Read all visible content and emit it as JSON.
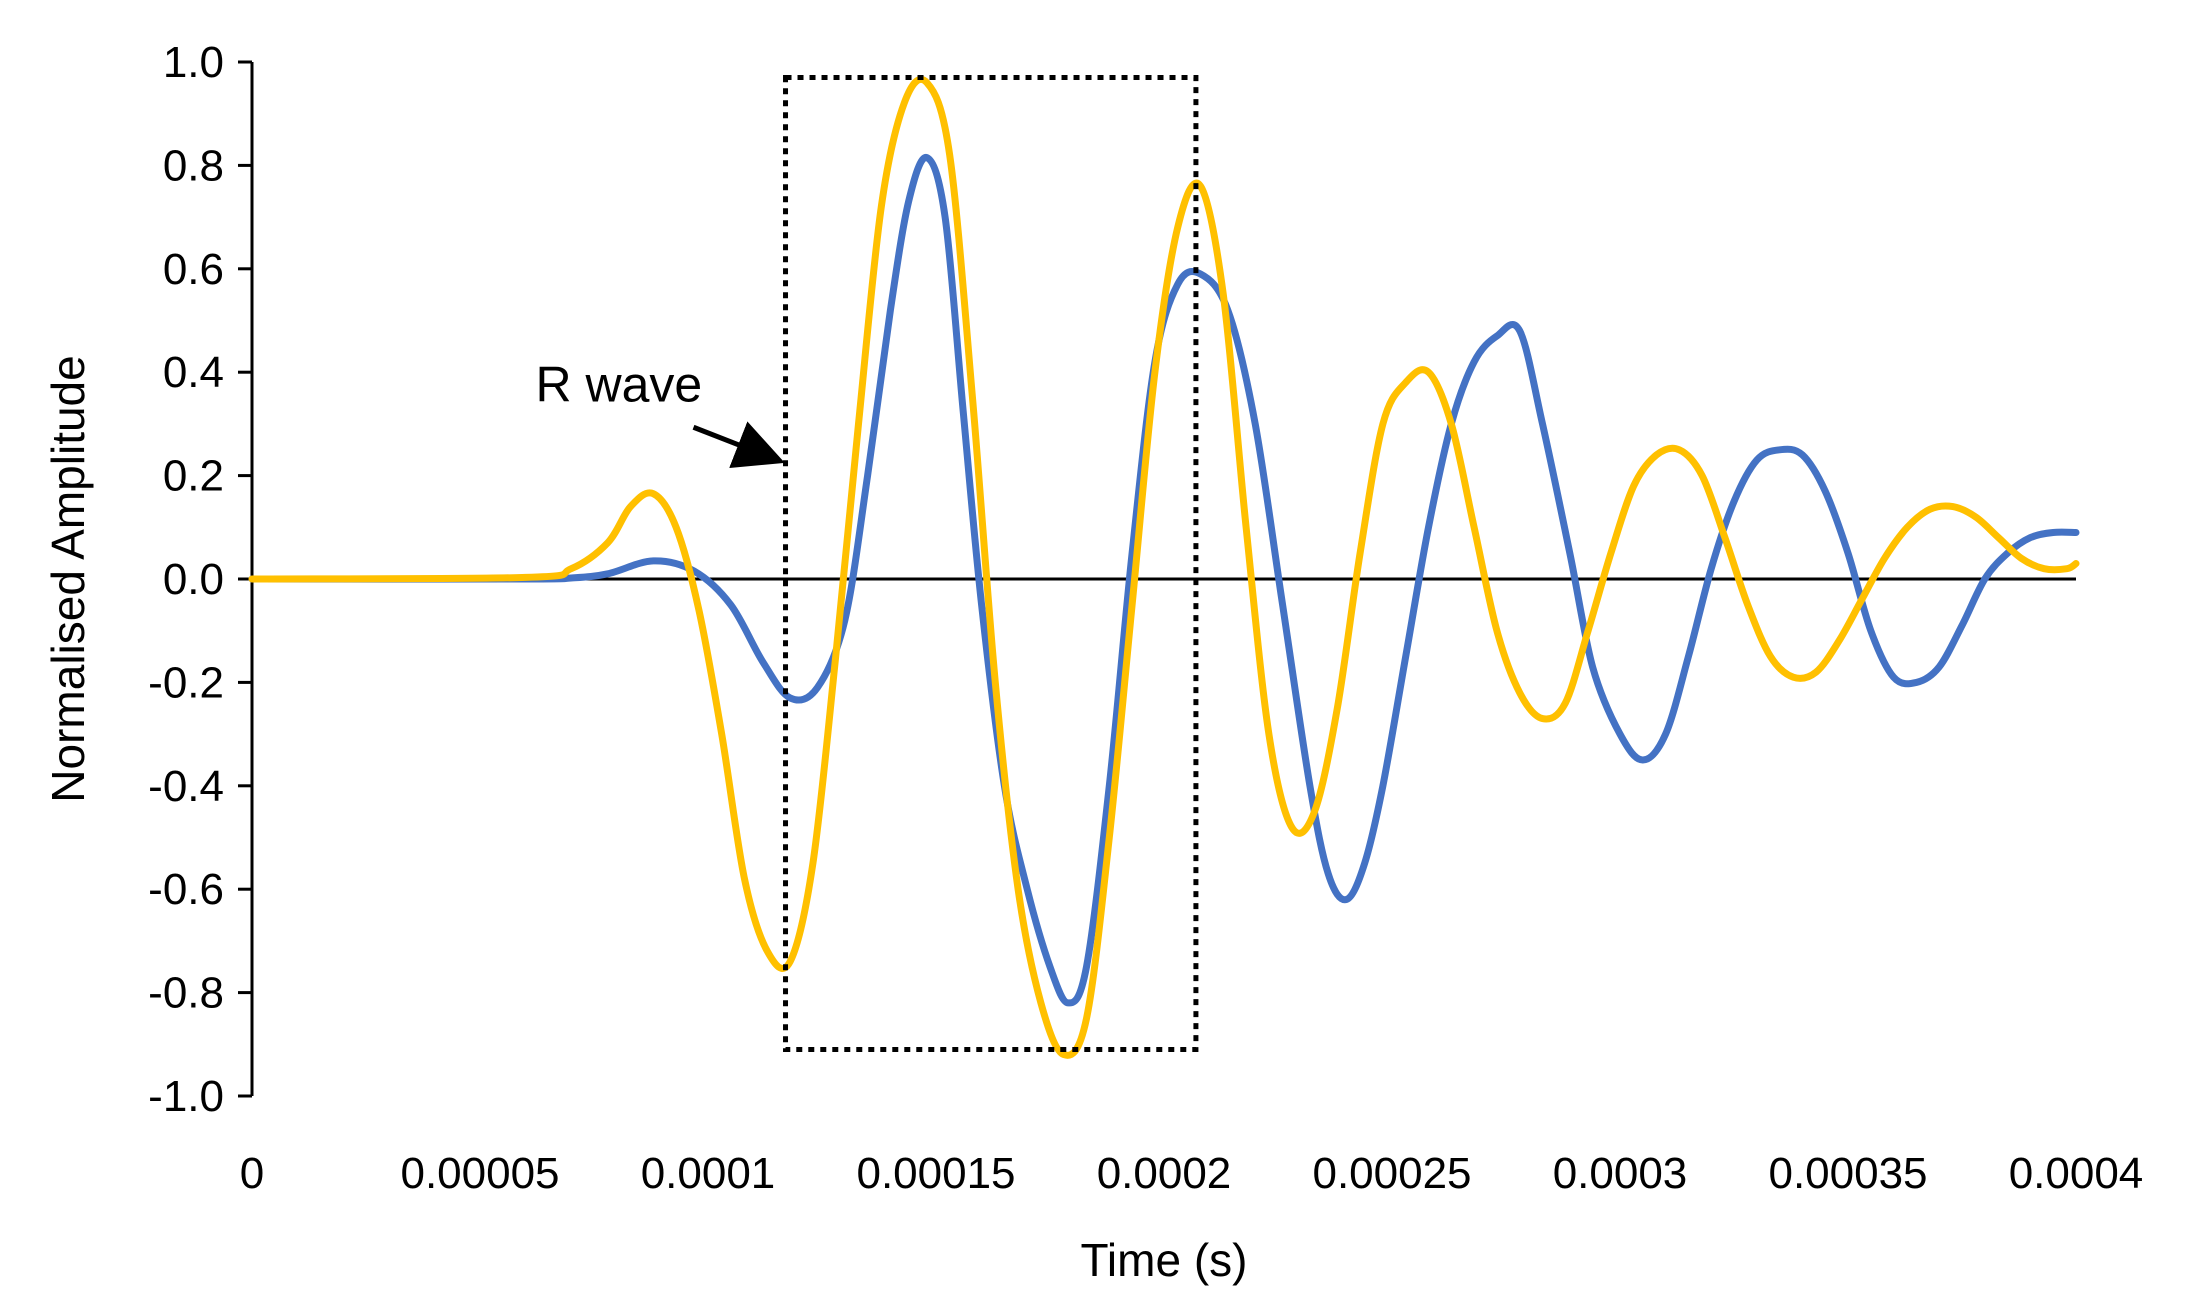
{
  "chart_data": {
    "type": "line",
    "title": "",
    "xlabel": "Time (s)",
    "ylabel": "Normalised Amplitude",
    "xlim": [
      0,
      0.0004
    ],
    "ylim": [
      -1.0,
      1.0
    ],
    "x_ticks": [
      0,
      5e-05,
      0.0001,
      0.00015,
      0.0002,
      0.00025,
      0.0003,
      0.00035,
      0.0004
    ],
    "x_tick_labels": [
      "0",
      "0.00005",
      "0.0001",
      "0.00015",
      "0.0002",
      "0.00025",
      "0.0003",
      "0.00035",
      "0.0004"
    ],
    "y_ticks": [
      1.0,
      0.8,
      0.6,
      0.4,
      0.2,
      0.0,
      -0.2,
      -0.4,
      -0.6,
      -0.8,
      -1.0
    ],
    "y_tick_labels": [
      "1.0",
      "0.8",
      "0.6",
      "0.4",
      "0.2",
      "0.0",
      "-0.2",
      "-0.4",
      "-0.6",
      "-0.8",
      "-1.0"
    ],
    "grid": false,
    "legend": "none",
    "series": [
      {
        "color": "#4472C4",
        "x": [
          0,
          6e-05,
          7e-05,
          7.8e-05,
          8.8e-05,
          9.7e-05,
          0.000105,
          0.000112,
          0.000118,
          0.000124,
          0.00013,
          0.000135,
          0.00014,
          0.000144,
          0.000148,
          0.000152,
          0.000156,
          0.00016,
          0.000165,
          0.00017,
          0.000175,
          0.000179,
          0.000183,
          0.000188,
          0.000193,
          0.000198,
          0.000203,
          0.000208,
          0.000214,
          0.00022,
          0.000226,
          0.000232,
          0.000236,
          0.00024,
          0.000244,
          0.000248,
          0.000253,
          0.000258,
          0.000263,
          0.000268,
          0.000273,
          0.000278,
          0.000283,
          0.000289,
          0.000294,
          0.0003,
          0.000305,
          0.00031,
          0.000315,
          0.00032,
          0.000325,
          0.00033,
          0.000335,
          0.00034,
          0.000345,
          0.00035,
          0.000355,
          0.00036,
          0.000365,
          0.00037,
          0.000375,
          0.00038,
          0.000385,
          0.00039,
          0.000395,
          0.0004
        ],
        "values": [
          0,
          0,
          0.002,
          0.01,
          0.035,
          0.015,
          -0.05,
          -0.16,
          -0.23,
          -0.21,
          -0.08,
          0.2,
          0.52,
          0.73,
          0.815,
          0.7,
          0.32,
          -0.05,
          -0.4,
          -0.6,
          -0.75,
          -0.82,
          -0.75,
          -0.4,
          0.05,
          0.42,
          0.57,
          0.59,
          0.52,
          0.3,
          -0.05,
          -0.4,
          -0.57,
          -0.62,
          -0.55,
          -0.4,
          -0.15,
          0.1,
          0.3,
          0.42,
          0.47,
          0.48,
          0.3,
          0.05,
          -0.17,
          -0.3,
          -0.35,
          -0.3,
          -0.15,
          0.02,
          0.15,
          0.23,
          0.25,
          0.24,
          0.17,
          0.05,
          -0.1,
          -0.19,
          -0.2,
          -0.17,
          -0.09,
          0.0,
          0.05,
          0.08,
          0.09,
          0.09
        ]
      },
      {
        "color": "#FFC000",
        "x": [
          0,
          6e-05,
          7e-05,
          7.8e-05,
          8.3e-05,
          8.8e-05,
          9.3e-05,
          9.8e-05,
          0.000103,
          0.000108,
          0.000113,
          0.000118,
          0.000123,
          0.000128,
          0.000133,
          0.000138,
          0.000143,
          0.000148,
          0.000153,
          0.000158,
          0.000163,
          0.000168,
          0.000173,
          0.000178,
          0.000183,
          0.000188,
          0.000193,
          0.000198,
          0.000203,
          0.000208,
          0.000213,
          0.000218,
          0.000223,
          0.000228,
          0.000233,
          0.000238,
          0.000243,
          0.000248,
          0.000253,
          0.000258,
          0.000263,
          0.000268,
          0.000273,
          0.000278,
          0.000283,
          0.000288,
          0.000293,
          0.000298,
          0.000303,
          0.000308,
          0.000313,
          0.000318,
          0.000323,
          0.000328,
          0.000333,
          0.000338,
          0.000343,
          0.000348,
          0.000353,
          0.000358,
          0.000363,
          0.000368,
          0.000373,
          0.000378,
          0.000383,
          0.000388,
          0.000393,
          0.000398,
          0.0004
        ],
        "values": [
          0,
          0.003,
          0.02,
          0.07,
          0.14,
          0.165,
          0.1,
          -0.06,
          -0.3,
          -0.58,
          -0.72,
          -0.74,
          -0.55,
          -0.15,
          0.3,
          0.72,
          0.92,
          0.96,
          0.82,
          0.35,
          -0.2,
          -0.6,
          -0.82,
          -0.92,
          -0.85,
          -0.5,
          -0.05,
          0.4,
          0.68,
          0.76,
          0.55,
          0.1,
          -0.3,
          -0.48,
          -0.45,
          -0.25,
          0.05,
          0.3,
          0.38,
          0.4,
          0.3,
          0.1,
          -0.1,
          -0.22,
          -0.27,
          -0.24,
          -0.1,
          0.05,
          0.18,
          0.24,
          0.25,
          0.2,
          0.08,
          -0.05,
          -0.15,
          -0.19,
          -0.18,
          -0.12,
          -0.04,
          0.04,
          0.1,
          0.135,
          0.14,
          0.12,
          0.08,
          0.04,
          0.02,
          0.02,
          0.03
        ]
      }
    ],
    "annotations": [
      {
        "text": "R wave",
        "arrow_to": [
          0.000117,
          0.22
        ],
        "box": {
          "x": [
            0.000117,
            0.000207
          ],
          "y": [
            -0.91,
            0.97
          ],
          "style": "dotted"
        }
      }
    ]
  }
}
